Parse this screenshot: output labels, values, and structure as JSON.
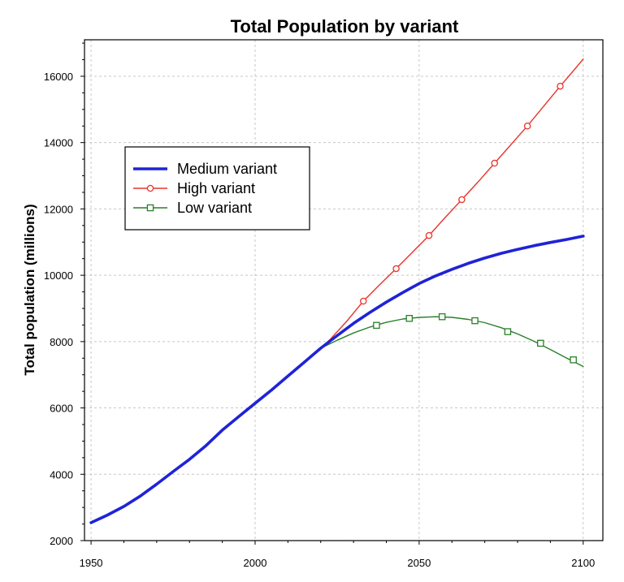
{
  "chart_data": {
    "type": "line",
    "title": "Total Population by variant",
    "xlabel": "",
    "ylabel": "Total population (millions)",
    "xlim": [
      1948,
      2106
    ],
    "ylim": [
      2000,
      17100
    ],
    "x_ticks": [
      1950,
      2000,
      2050,
      2100
    ],
    "y_ticks": [
      2000,
      4000,
      6000,
      8000,
      10000,
      12000,
      14000,
      16000
    ],
    "grid": true,
    "legend_position": "upper-left",
    "colors": {
      "medium": "#1f23d6",
      "high": "#e8332f",
      "low": "#2a7f2a",
      "grid": "#c8c8c8",
      "axis": "#000000"
    },
    "series": [
      {
        "name": "Medium variant",
        "marker": "none",
        "points": [
          [
            1950,
            2540
          ],
          [
            1955,
            2770
          ],
          [
            1960,
            3030
          ],
          [
            1965,
            3340
          ],
          [
            1970,
            3700
          ],
          [
            1975,
            4080
          ],
          [
            1980,
            4450
          ],
          [
            1985,
            4860
          ],
          [
            1990,
            5330
          ],
          [
            1995,
            5740
          ],
          [
            2000,
            6140
          ],
          [
            2005,
            6540
          ],
          [
            2010,
            6960
          ],
          [
            2015,
            7380
          ],
          [
            2020,
            7800
          ],
          [
            2025,
            8180
          ],
          [
            2030,
            8550
          ],
          [
            2035,
            8880
          ],
          [
            2040,
            9190
          ],
          [
            2045,
            9480
          ],
          [
            2050,
            9750
          ],
          [
            2055,
            9980
          ],
          [
            2060,
            10180
          ],
          [
            2065,
            10360
          ],
          [
            2070,
            10520
          ],
          [
            2075,
            10660
          ],
          [
            2080,
            10780
          ],
          [
            2085,
            10890
          ],
          [
            2090,
            10990
          ],
          [
            2095,
            11080
          ],
          [
            2100,
            11180
          ]
        ]
      },
      {
        "name": "High variant",
        "marker": "circle",
        "points": [
          [
            2020,
            7800
          ],
          [
            2023,
            8080
          ],
          [
            2028,
            8620
          ],
          [
            2033,
            9220
          ],
          [
            2038,
            9720
          ],
          [
            2043,
            10200
          ],
          [
            2048,
            10700
          ],
          [
            2053,
            11200
          ],
          [
            2058,
            11750
          ],
          [
            2063,
            12280
          ],
          [
            2068,
            12820
          ],
          [
            2073,
            13380
          ],
          [
            2078,
            13940
          ],
          [
            2083,
            14500
          ],
          [
            2088,
            15100
          ],
          [
            2093,
            15700
          ],
          [
            2098,
            16280
          ],
          [
            2100,
            16520
          ]
        ],
        "marker_points": [
          [
            2033,
            9220
          ],
          [
            2043,
            10200
          ],
          [
            2053,
            11200
          ],
          [
            2063,
            12280
          ],
          [
            2073,
            13380
          ],
          [
            2083,
            14500
          ],
          [
            2093,
            15700
          ]
        ]
      },
      {
        "name": "Low variant",
        "marker": "square",
        "points": [
          [
            2020,
            7800
          ],
          [
            2025,
            8040
          ],
          [
            2030,
            8260
          ],
          [
            2035,
            8440
          ],
          [
            2040,
            8580
          ],
          [
            2045,
            8680
          ],
          [
            2050,
            8730
          ],
          [
            2055,
            8750
          ],
          [
            2060,
            8730
          ],
          [
            2065,
            8670
          ],
          [
            2070,
            8570
          ],
          [
            2075,
            8420
          ],
          [
            2080,
            8230
          ],
          [
            2085,
            8010
          ],
          [
            2090,
            7760
          ],
          [
            2095,
            7500
          ],
          [
            2100,
            7250
          ]
        ],
        "marker_points": [
          [
            2037,
            8490
          ],
          [
            2047,
            8700
          ],
          [
            2057,
            8750
          ],
          [
            2067,
            8630
          ],
          [
            2077,
            8300
          ],
          [
            2087,
            7950
          ],
          [
            2097,
            7450
          ]
        ]
      }
    ]
  }
}
